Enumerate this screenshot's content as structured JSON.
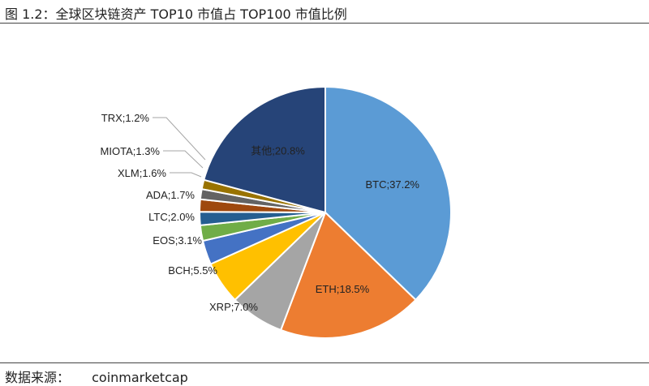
{
  "figure": {
    "title": "图 1.2：全球区块链资产 TOP10 市值占 TOP100 市值比例",
    "source_label": "数据来源：",
    "source_value": "coinmarketcap"
  },
  "chart_data": {
    "type": "pie",
    "title": "",
    "start_angle_deg": 0,
    "direction": "clockwise",
    "slices": [
      {
        "label": "BTC",
        "value": 37.2,
        "text": "BTC;37.2%",
        "color": "#5b9bd5",
        "label_pos": "inside"
      },
      {
        "label": "ETH",
        "value": 18.5,
        "text": "ETH;18.5%",
        "color": "#ed7d31",
        "label_pos": "inside"
      },
      {
        "label": "XRP",
        "value": 7.0,
        "text": "XRP;7.0%",
        "color": "#a5a5a5",
        "label_pos": "outside"
      },
      {
        "label": "BCH",
        "value": 5.5,
        "text": "BCH;5.5%",
        "color": "#ffc000",
        "label_pos": "outside"
      },
      {
        "label": "EOS",
        "value": 3.1,
        "text": "EOS;3.1%",
        "color": "#4472c4",
        "label_pos": "outside"
      },
      {
        "label": "LTC",
        "value": 2.0,
        "text": "LTC;2.0%",
        "color": "#70ad47",
        "label_pos": "outside"
      },
      {
        "label": "ADA",
        "value": 1.7,
        "text": "ADA;1.7%",
        "color": "#255e91",
        "label_pos": "outside"
      },
      {
        "label": "XLM",
        "value": 1.6,
        "text": "XLM;1.6%",
        "color": "#9e480e",
        "label_pos": "outside"
      },
      {
        "label": "MIOTA",
        "value": 1.3,
        "text": "MIOTA;1.3%",
        "color": "#636363",
        "label_pos": "outside"
      },
      {
        "label": "TRX",
        "value": 1.2,
        "text": "TRX;1.2%",
        "color": "#997300",
        "label_pos": "outside"
      },
      {
        "label": "其他",
        "value": 20.8,
        "text": "其他;20.8%",
        "color": "#264478",
        "label_pos": "inside"
      }
    ]
  }
}
